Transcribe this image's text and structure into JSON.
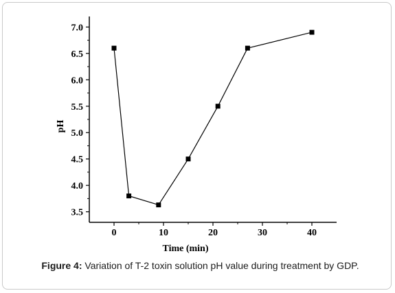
{
  "chart_data": {
    "type": "line",
    "xlabel": "Time (min)",
    "ylabel": "pH",
    "xlim": [
      -5,
      45
    ],
    "ylim": [
      3.3,
      7.2
    ],
    "x_ticks": [
      0,
      10,
      20,
      30,
      40
    ],
    "y_ticks": [
      3.5,
      4.0,
      4.5,
      5.0,
      5.5,
      6.0,
      6.5,
      7.0
    ],
    "x_tick_labels": [
      "0",
      "10",
      "20",
      "30",
      "40"
    ],
    "y_tick_labels": [
      "3.5",
      "4.0",
      "4.5",
      "5.0",
      "5.5",
      "6.0",
      "6.5",
      "7.0"
    ],
    "grid": false,
    "series": [
      {
        "x": [
          0,
          3,
          9,
          15,
          21,
          27,
          40
        ],
        "y": [
          6.6,
          3.8,
          3.63,
          4.5,
          5.5,
          6.6,
          6.9
        ],
        "marker": "square",
        "color": "#000000"
      }
    ]
  },
  "caption": {
    "label": "Figure 4:",
    "text": " Variation of T-2 toxin solution pH value during treatment by GDP."
  }
}
